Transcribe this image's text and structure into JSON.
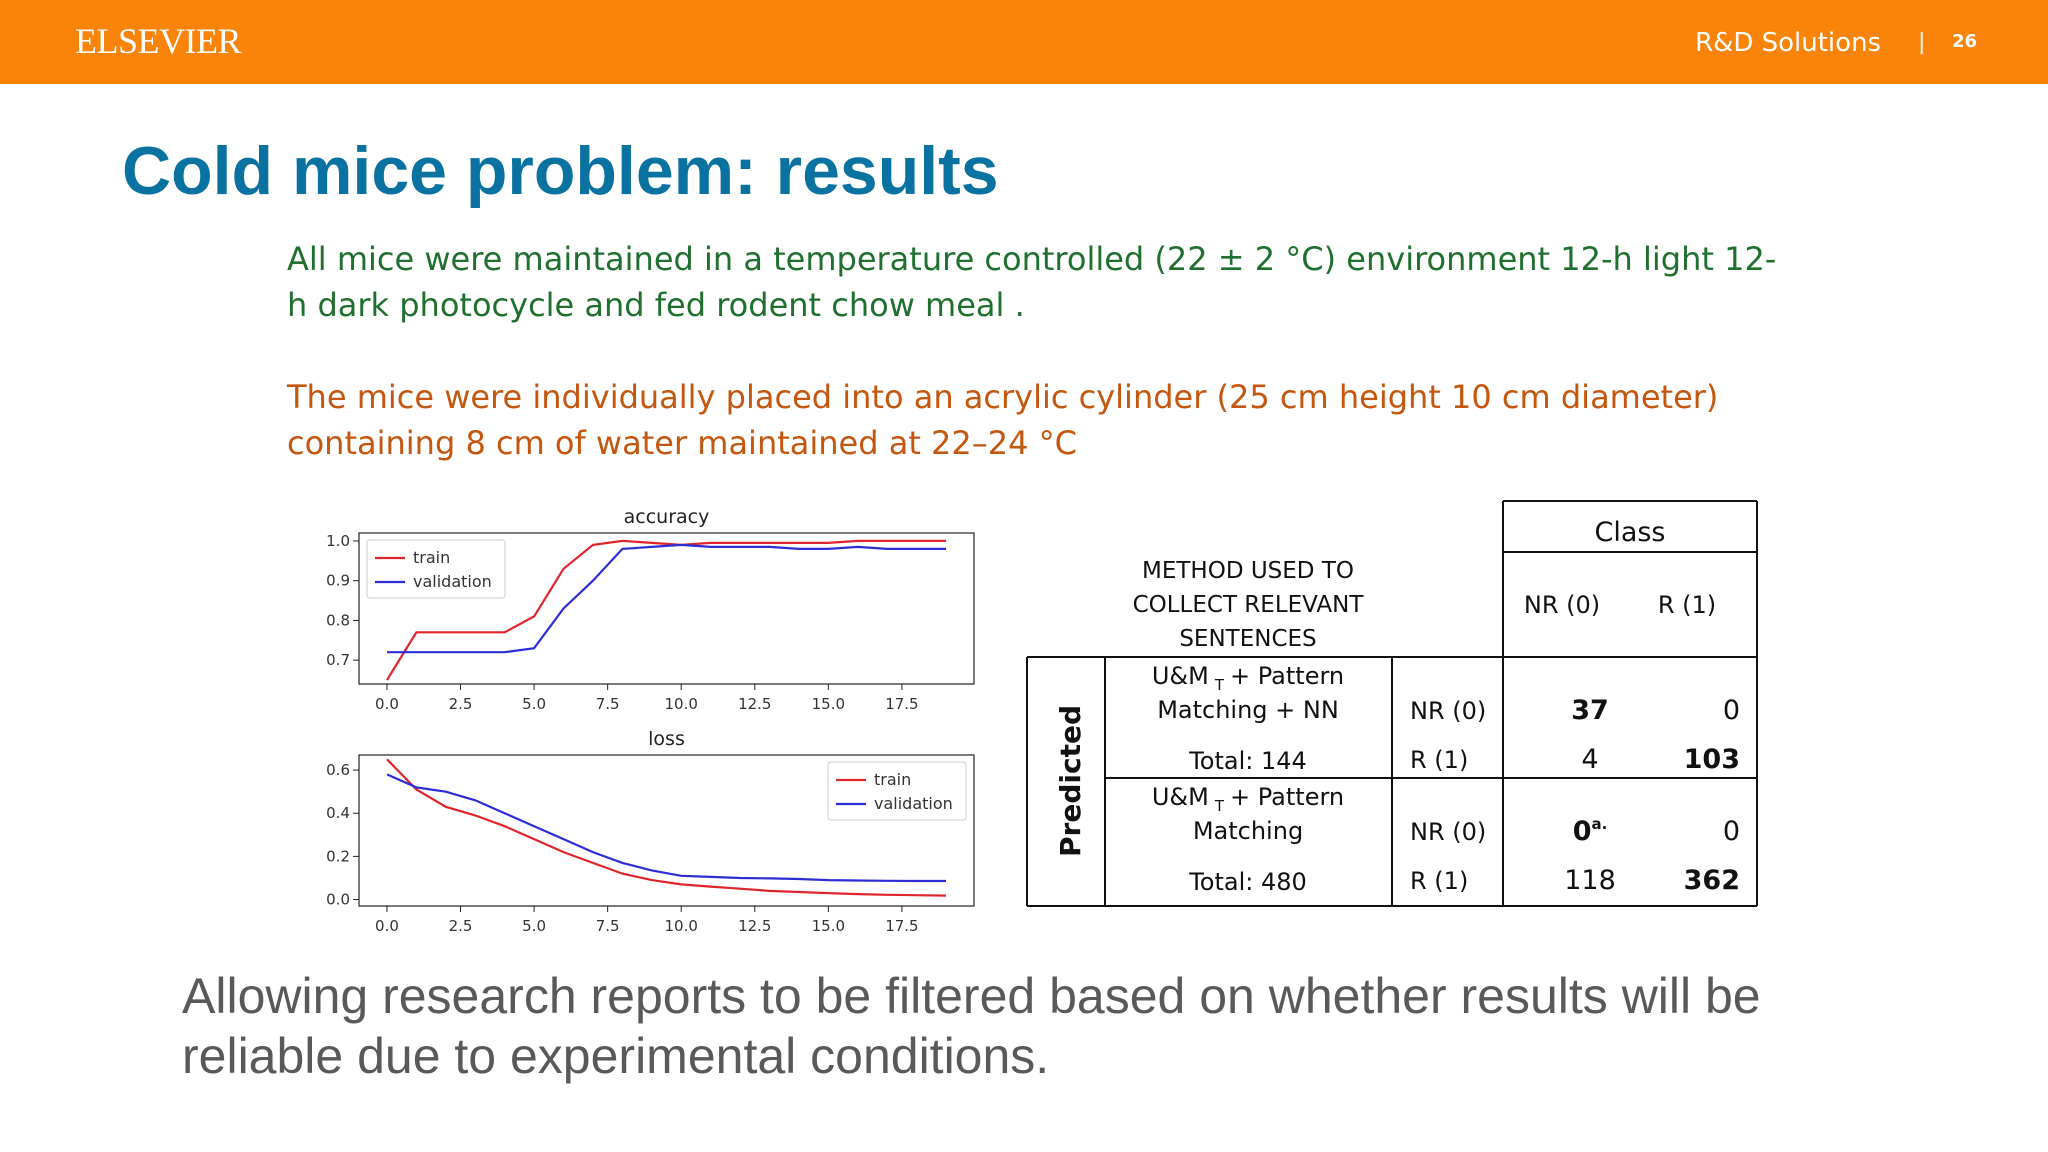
{
  "header": {
    "logo": "ELSEVIER",
    "brand": "R&D Solutions",
    "separator": "|",
    "page_number": "26",
    "bar_color": "#f98409"
  },
  "slide": {
    "title": "Cold mice problem: results",
    "paragraph1": "All mice were maintained in a temperature controlled (22 ± 2 °C) environment 12-h  light 12-h dark photocycle and fed rodent chow meal .",
    "paragraph2": "The mice were individually placed into an acrylic cylinder (25 cm height 10 cm diameter) containing 8 cm of water maintained at 22–24 °C",
    "footer": "Allowing research reports to be filtered based on whether results will be reliable due to experimental conditions."
  },
  "chart_data": [
    {
      "type": "line",
      "title": "accuracy",
      "xlabel": "",
      "ylabel": "",
      "x": [
        0,
        1,
        2,
        3,
        4,
        5,
        6,
        7,
        8,
        9,
        10,
        11,
        12,
        13,
        14,
        15,
        16,
        17,
        18,
        19
      ],
      "xticks": [
        "0.0",
        "2.5",
        "5.0",
        "7.5",
        "10.0",
        "12.5",
        "15.0",
        "17.5"
      ],
      "yticks": [
        "0.7",
        "0.8",
        "0.9",
        "1.0"
      ],
      "xlim": [
        -0.95,
        19.95
      ],
      "ylim": [
        0.64,
        1.02
      ],
      "legend_position": "top-left",
      "series": [
        {
          "name": "train",
          "color": "#e0242c",
          "values": [
            0.65,
            0.77,
            0.77,
            0.77,
            0.77,
            0.81,
            0.93,
            0.99,
            1.0,
            0.995,
            0.99,
            0.995,
            0.995,
            0.995,
            0.995,
            0.995,
            1.0,
            1.0,
            1.0,
            1.0
          ]
        },
        {
          "name": "validation",
          "color": "#2d2dd6",
          "values": [
            0.72,
            0.72,
            0.72,
            0.72,
            0.72,
            0.73,
            0.83,
            0.9,
            0.98,
            0.985,
            0.99,
            0.985,
            0.985,
            0.985,
            0.98,
            0.98,
            0.985,
            0.98,
            0.98,
            0.98
          ]
        }
      ]
    },
    {
      "type": "line",
      "title": "loss",
      "xlabel": "",
      "ylabel": "",
      "x": [
        0,
        1,
        2,
        3,
        4,
        5,
        6,
        7,
        8,
        9,
        10,
        11,
        12,
        13,
        14,
        15,
        16,
        17,
        18,
        19
      ],
      "xticks": [
        "0.0",
        "2.5",
        "5.0",
        "7.5",
        "10.0",
        "12.5",
        "15.0",
        "17.5"
      ],
      "yticks": [
        "0.0",
        "0.2",
        "0.4",
        "0.6"
      ],
      "xlim": [
        -0.95,
        19.95
      ],
      "ylim": [
        -0.03,
        0.67
      ],
      "legend_position": "top-right",
      "series": [
        {
          "name": "train",
          "color": "#e0242c",
          "values": [
            0.65,
            0.51,
            0.43,
            0.39,
            0.34,
            0.28,
            0.22,
            0.17,
            0.12,
            0.09,
            0.07,
            0.06,
            0.05,
            0.04,
            0.035,
            0.03,
            0.025,
            0.022,
            0.02,
            0.018
          ]
        },
        {
          "name": "validation",
          "color": "#2d2dd6",
          "values": [
            0.58,
            0.52,
            0.5,
            0.46,
            0.4,
            0.34,
            0.28,
            0.22,
            0.17,
            0.135,
            0.11,
            0.105,
            0.1,
            0.098,
            0.095,
            0.09,
            0.088,
            0.087,
            0.086,
            0.086
          ]
        }
      ]
    },
    {
      "type": "table",
      "class_header": "Class",
      "method_header": "METHOD USED TO COLLECT RELEVANT SENTENCES",
      "method_header_lines": [
        "METHOD USED TO",
        "COLLECT RELEVANT",
        "SENTENCES"
      ],
      "columns": [
        "NR (0)",
        "R (1)"
      ],
      "row_group_label": "Predicted",
      "subscript": "T",
      "blocks": [
        {
          "method_lines": [
            "U&M",
            "+ Pattern",
            "Matching + NN"
          ],
          "total": "Total: 144",
          "rows": [
            {
              "label": "NR (0)",
              "cells": [
                {
                  "value": "37",
                  "bold": true
                },
                {
                  "value": "0",
                  "bold": false
                }
              ]
            },
            {
              "label": "R (1)",
              "cells": [
                {
                  "value": "4",
                  "bold": false
                },
                {
                  "value": "103",
                  "bold": true
                }
              ]
            }
          ]
        },
        {
          "method_lines": [
            "U&M",
            "+ Pattern",
            "Matching"
          ],
          "total": "Total: 480",
          "rows": [
            {
              "label": "NR (0)",
              "cells": [
                {
                  "value": "0",
                  "bold": true,
                  "superscript": "a."
                },
                {
                  "value": "0",
                  "bold": false
                }
              ]
            },
            {
              "label": "R (1)",
              "cells": [
                {
                  "value": "118",
                  "bold": false
                },
                {
                  "value": "362",
                  "bold": true
                }
              ]
            }
          ]
        }
      ]
    }
  ]
}
